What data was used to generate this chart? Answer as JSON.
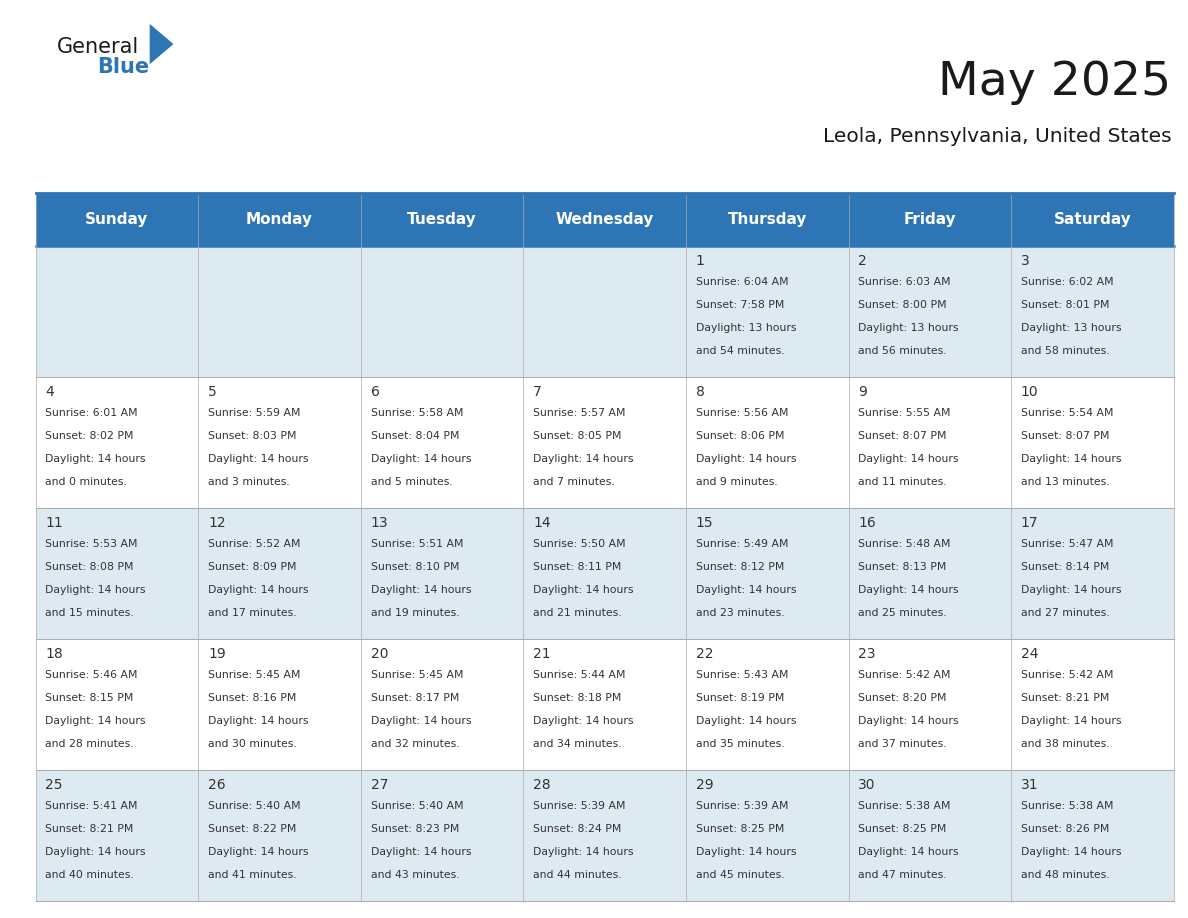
{
  "title": "May 2025",
  "subtitle": "Leola, Pennsylvania, United States",
  "header_bg": "#2E75B6",
  "header_text_color": "#FFFFFF",
  "cell_bg_even": "#DEEAF1",
  "cell_bg_odd": "#FFFFFF",
  "border_color": "#2E75B6",
  "grid_color": "#AAAAAA",
  "text_color": "#333333",
  "day_names": [
    "Sunday",
    "Monday",
    "Tuesday",
    "Wednesday",
    "Thursday",
    "Friday",
    "Saturday"
  ],
  "days": [
    {
      "day": 1,
      "col": 4,
      "row": 0,
      "sunrise": "6:04 AM",
      "sunset": "7:58 PM",
      "daylight": "13 hours\nand 54 minutes."
    },
    {
      "day": 2,
      "col": 5,
      "row": 0,
      "sunrise": "6:03 AM",
      "sunset": "8:00 PM",
      "daylight": "13 hours\nand 56 minutes."
    },
    {
      "day": 3,
      "col": 6,
      "row": 0,
      "sunrise": "6:02 AM",
      "sunset": "8:01 PM",
      "daylight": "13 hours\nand 58 minutes."
    },
    {
      "day": 4,
      "col": 0,
      "row": 1,
      "sunrise": "6:01 AM",
      "sunset": "8:02 PM",
      "daylight": "14 hours\nand 0 minutes."
    },
    {
      "day": 5,
      "col": 1,
      "row": 1,
      "sunrise": "5:59 AM",
      "sunset": "8:03 PM",
      "daylight": "14 hours\nand 3 minutes."
    },
    {
      "day": 6,
      "col": 2,
      "row": 1,
      "sunrise": "5:58 AM",
      "sunset": "8:04 PM",
      "daylight": "14 hours\nand 5 minutes."
    },
    {
      "day": 7,
      "col": 3,
      "row": 1,
      "sunrise": "5:57 AM",
      "sunset": "8:05 PM",
      "daylight": "14 hours\nand 7 minutes."
    },
    {
      "day": 8,
      "col": 4,
      "row": 1,
      "sunrise": "5:56 AM",
      "sunset": "8:06 PM",
      "daylight": "14 hours\nand 9 minutes."
    },
    {
      "day": 9,
      "col": 5,
      "row": 1,
      "sunrise": "5:55 AM",
      "sunset": "8:07 PM",
      "daylight": "14 hours\nand 11 minutes."
    },
    {
      "day": 10,
      "col": 6,
      "row": 1,
      "sunrise": "5:54 AM",
      "sunset": "8:07 PM",
      "daylight": "14 hours\nand 13 minutes."
    },
    {
      "day": 11,
      "col": 0,
      "row": 2,
      "sunrise": "5:53 AM",
      "sunset": "8:08 PM",
      "daylight": "14 hours\nand 15 minutes."
    },
    {
      "day": 12,
      "col": 1,
      "row": 2,
      "sunrise": "5:52 AM",
      "sunset": "8:09 PM",
      "daylight": "14 hours\nand 17 minutes."
    },
    {
      "day": 13,
      "col": 2,
      "row": 2,
      "sunrise": "5:51 AM",
      "sunset": "8:10 PM",
      "daylight": "14 hours\nand 19 minutes."
    },
    {
      "day": 14,
      "col": 3,
      "row": 2,
      "sunrise": "5:50 AM",
      "sunset": "8:11 PM",
      "daylight": "14 hours\nand 21 minutes."
    },
    {
      "day": 15,
      "col": 4,
      "row": 2,
      "sunrise": "5:49 AM",
      "sunset": "8:12 PM",
      "daylight": "14 hours\nand 23 minutes."
    },
    {
      "day": 16,
      "col": 5,
      "row": 2,
      "sunrise": "5:48 AM",
      "sunset": "8:13 PM",
      "daylight": "14 hours\nand 25 minutes."
    },
    {
      "day": 17,
      "col": 6,
      "row": 2,
      "sunrise": "5:47 AM",
      "sunset": "8:14 PM",
      "daylight": "14 hours\nand 27 minutes."
    },
    {
      "day": 18,
      "col": 0,
      "row": 3,
      "sunrise": "5:46 AM",
      "sunset": "8:15 PM",
      "daylight": "14 hours\nand 28 minutes."
    },
    {
      "day": 19,
      "col": 1,
      "row": 3,
      "sunrise": "5:45 AM",
      "sunset": "8:16 PM",
      "daylight": "14 hours\nand 30 minutes."
    },
    {
      "day": 20,
      "col": 2,
      "row": 3,
      "sunrise": "5:45 AM",
      "sunset": "8:17 PM",
      "daylight": "14 hours\nand 32 minutes."
    },
    {
      "day": 21,
      "col": 3,
      "row": 3,
      "sunrise": "5:44 AM",
      "sunset": "8:18 PM",
      "daylight": "14 hours\nand 34 minutes."
    },
    {
      "day": 22,
      "col": 4,
      "row": 3,
      "sunrise": "5:43 AM",
      "sunset": "8:19 PM",
      "daylight": "14 hours\nand 35 minutes."
    },
    {
      "day": 23,
      "col": 5,
      "row": 3,
      "sunrise": "5:42 AM",
      "sunset": "8:20 PM",
      "daylight": "14 hours\nand 37 minutes."
    },
    {
      "day": 24,
      "col": 6,
      "row": 3,
      "sunrise": "5:42 AM",
      "sunset": "8:21 PM",
      "daylight": "14 hours\nand 38 minutes."
    },
    {
      "day": 25,
      "col": 0,
      "row": 4,
      "sunrise": "5:41 AM",
      "sunset": "8:21 PM",
      "daylight": "14 hours\nand 40 minutes."
    },
    {
      "day": 26,
      "col": 1,
      "row": 4,
      "sunrise": "5:40 AM",
      "sunset": "8:22 PM",
      "daylight": "14 hours\nand 41 minutes."
    },
    {
      "day": 27,
      "col": 2,
      "row": 4,
      "sunrise": "5:40 AM",
      "sunset": "8:23 PM",
      "daylight": "14 hours\nand 43 minutes."
    },
    {
      "day": 28,
      "col": 3,
      "row": 4,
      "sunrise": "5:39 AM",
      "sunset": "8:24 PM",
      "daylight": "14 hours\nand 44 minutes."
    },
    {
      "day": 29,
      "col": 4,
      "row": 4,
      "sunrise": "5:39 AM",
      "sunset": "8:25 PM",
      "daylight": "14 hours\nand 45 minutes."
    },
    {
      "day": 30,
      "col": 5,
      "row": 4,
      "sunrise": "5:38 AM",
      "sunset": "8:25 PM",
      "daylight": "14 hours\nand 47 minutes."
    },
    {
      "day": 31,
      "col": 6,
      "row": 4,
      "sunrise": "5:38 AM",
      "sunset": "8:26 PM",
      "daylight": "14 hours\nand 48 minutes."
    }
  ]
}
